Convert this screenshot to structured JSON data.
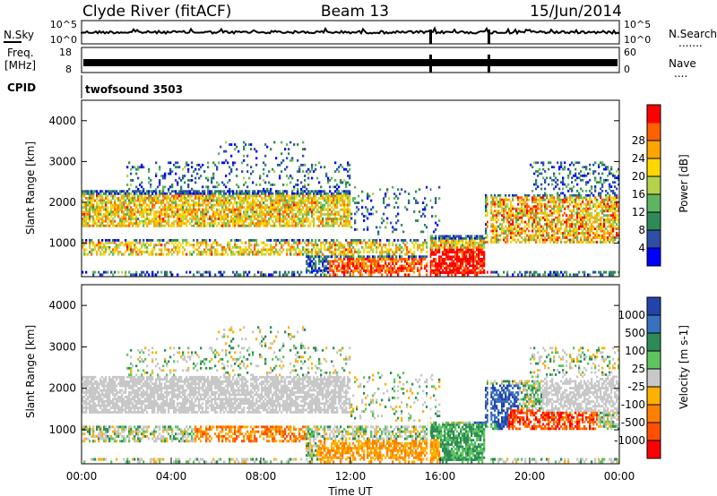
{
  "header": {
    "title_left": "Clyde River (fitACF)",
    "title_center": "Beam 13",
    "title_right": "15/Jun/2014"
  },
  "strips": {
    "nsky": {
      "label": "N.Sky",
      "tick_top": "10^5",
      "tick_bottom": "10^0"
    },
    "nsearch": {
      "label": "N.Search",
      "tick_top": "10^5",
      "tick_bottom": "10^0",
      "dots": "......."
    },
    "freq": {
      "label_line1": "Freq.",
      "label_line2": "[MHz]",
      "tick_top": "18",
      "tick_bottom": "8"
    },
    "nave": {
      "label": "Nave",
      "tick_top": "60",
      "tick_bottom": "0",
      "dots": "...."
    },
    "cpid": {
      "label": "CPID",
      "value": "twofsound 3503"
    }
  },
  "chart_data": [
    {
      "type": "heatmap",
      "title": "",
      "xlabel": "",
      "ylabel": "Slant Range [km]",
      "yticks": [
        "1000",
        "2000",
        "3000",
        "4000"
      ],
      "ylim": [
        180,
        4500
      ],
      "colorbar": {
        "label": "Power [dB]",
        "ticks": [
          "4",
          "8",
          "12",
          "16",
          "20",
          "24",
          "28"
        ],
        "colors": [
          "#0000ff",
          "#2d4fa8",
          "#2e8b57",
          "#5fb45f",
          "#b4d24b",
          "#ffd700",
          "#ffa500",
          "#ff6000",
          "#ff0000"
        ]
      }
    },
    {
      "type": "heatmap",
      "title": "",
      "xlabel": "Time UT",
      "ylabel": "Slant Range [km]",
      "yticks": [
        "1000",
        "2000",
        "3000",
        "4000"
      ],
      "xticks": [
        "00:00",
        "04:00",
        "08:00",
        "12:00",
        "16:00",
        "20:00",
        "00:00"
      ],
      "ylim": [
        180,
        4500
      ],
      "colorbar": {
        "label": "Velocity [m s-1]",
        "ticks": [
          "1000",
          "500",
          "100",
          "25",
          "-25",
          "-100",
          "-500",
          "-1000"
        ],
        "colors": [
          "#2244aa",
          "#3a70c0",
          "#2e8b57",
          "#5fc45f",
          "#c8c8c8",
          "#ffb000",
          "#ff8000",
          "#ff5000",
          "#ff0000"
        ]
      }
    }
  ]
}
